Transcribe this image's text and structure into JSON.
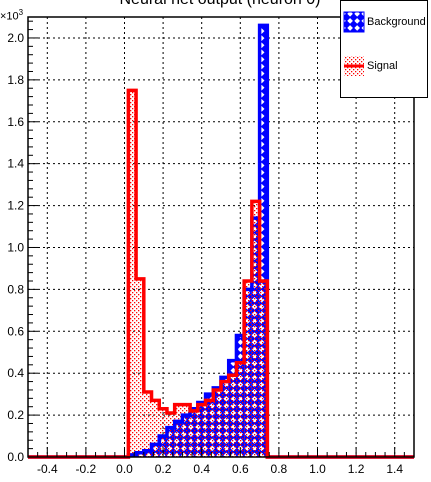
{
  "chart_data": {
    "type": "bar",
    "title": "Neural net output (neuron 0)",
    "xlabel": "",
    "ylabel": "",
    "y_multiplier": "×10",
    "y_multiplier_exp": "3",
    "xlim": [
      -0.5,
      1.5
    ],
    "ylim": [
      0,
      2.1
    ],
    "grid": true,
    "legend_position": "top-right",
    "x_ticks": [
      -0.4,
      -0.2,
      0.0,
      0.2,
      0.4,
      0.6,
      0.8,
      1.0,
      1.2,
      1.4
    ],
    "x_tick_labels": [
      "-0.4",
      "-0.2",
      "0.0",
      "0.2",
      "0.4",
      "0.6",
      "0.8",
      "1.0",
      "1.2",
      "1.4"
    ],
    "y_ticks": [
      0.0,
      0.2,
      0.4,
      0.6,
      0.8,
      1.0,
      1.2,
      1.4,
      1.6,
      1.8,
      2.0
    ],
    "y_tick_labels": [
      "0.0",
      "0.2",
      "0.4",
      "0.6",
      "0.8",
      "1.0",
      "1.2",
      "1.4",
      "1.6",
      "1.8",
      "2.0"
    ],
    "bin_width": 0.04,
    "bin_low_edges": [
      -0.5,
      -0.46,
      -0.42,
      -0.38,
      -0.34,
      -0.3,
      -0.26,
      -0.22,
      -0.18,
      -0.14,
      -0.1,
      -0.06,
      -0.02,
      0.02,
      0.06,
      0.1,
      0.14,
      0.18,
      0.22,
      0.26,
      0.3,
      0.34,
      0.38,
      0.42,
      0.46,
      0.5,
      0.54,
      0.58,
      0.62,
      0.66,
      0.7,
      0.74,
      0.78,
      0.82,
      0.86,
      0.9,
      0.94,
      0.98,
      1.02,
      1.06,
      1.1,
      1.14,
      1.18,
      1.22,
      1.26,
      1.3,
      1.34,
      1.38,
      1.42,
      1.46
    ],
    "series": [
      {
        "name": "Background",
        "color": "#0000ff",
        "fill": "hatched",
        "values": [
          0,
          0,
          0,
          0,
          0,
          0,
          0,
          0,
          0,
          0,
          0,
          0,
          0,
          0.01,
          0.02,
          0.03,
          0.06,
          0.1,
          0.14,
          0.17,
          0.2,
          0.23,
          0.26,
          0.3,
          0.33,
          0.38,
          0.46,
          0.58,
          0.8,
          1.14,
          2.06,
          0,
          0,
          0,
          0,
          0,
          0,
          0,
          0,
          0,
          0,
          0,
          0,
          0,
          0,
          0,
          0,
          0,
          0,
          0
        ]
      },
      {
        "name": "Signal",
        "color": "#ff0000",
        "fill": "dotted",
        "values": [
          0,
          0,
          0,
          0,
          0,
          0,
          0,
          0,
          0,
          0,
          0,
          0,
          0,
          1.75,
          0.85,
          0.31,
          0.27,
          0.23,
          0.21,
          0.25,
          0.25,
          0.22,
          0.25,
          0.27,
          0.32,
          0.36,
          0.39,
          0.45,
          0.84,
          1.22,
          0.84,
          0,
          0,
          0,
          0,
          0,
          0,
          0,
          0,
          0,
          0,
          0,
          0,
          0,
          0,
          0,
          0,
          0,
          0,
          0
        ]
      }
    ]
  }
}
